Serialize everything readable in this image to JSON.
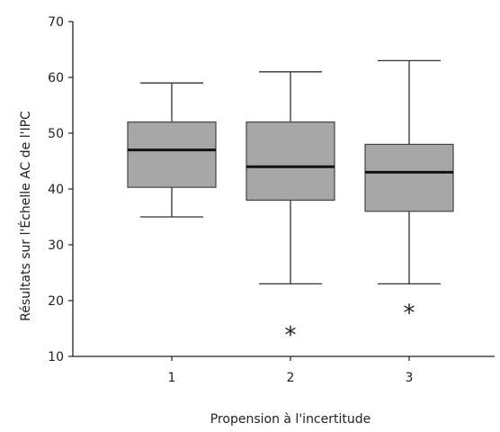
{
  "chart_data": {
    "type": "boxplot",
    "title": "",
    "xlabel": "Propension à l'incertitude",
    "ylabel": "Résultats sur l'Échelle AC de l'IPC",
    "ylim": [
      10,
      70
    ],
    "y_ticks": [
      10,
      20,
      30,
      40,
      50,
      60,
      70
    ],
    "categories": [
      "1",
      "2",
      "3"
    ],
    "grid": false,
    "boxes": [
      {
        "category": "1",
        "whisker_low": 35,
        "q1": 40.3,
        "median": 47,
        "q3": 52,
        "whisker_high": 59,
        "outliers": []
      },
      {
        "category": "2",
        "whisker_low": 23,
        "q1": 38,
        "median": 44,
        "q3": 52,
        "whisker_high": 61,
        "outliers": [
          14
        ]
      },
      {
        "category": "3",
        "whisker_low": 23,
        "q1": 36,
        "median": 43,
        "q3": 48,
        "whisker_high": 63,
        "outliers": [
          18
        ]
      }
    ],
    "outlier_marker": "*"
  }
}
